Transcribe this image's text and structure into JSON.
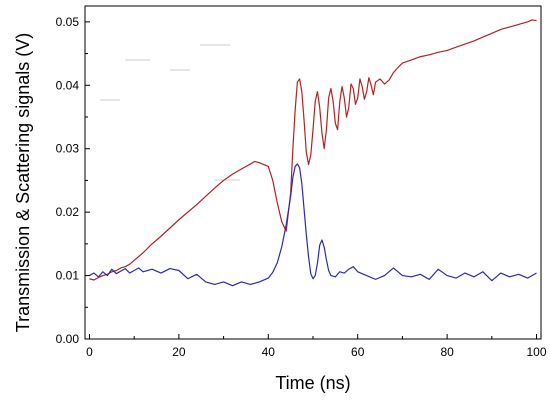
{
  "chart_data": {
    "type": "line",
    "title": "",
    "xlabel": "Time (ns)",
    "ylabel": "Transmission & Scattering signals (V)",
    "xlim": [
      -1,
      101
    ],
    "ylim": [
      0.0,
      0.0525
    ],
    "x_ticks": [
      0,
      20,
      40,
      60,
      80,
      100
    ],
    "y_ticks": [
      0.0,
      0.01,
      0.02,
      0.03,
      0.04,
      0.05
    ],
    "x_tick_labels": [
      "0",
      "20",
      "40",
      "60",
      "80",
      "100"
    ],
    "y_tick_labels": [
      "0.00",
      "0.01",
      "0.02",
      "0.03",
      "0.04",
      "0.05"
    ],
    "grid": false,
    "legend": "none",
    "series": [
      {
        "color": "#b22222",
        "x": [
          0,
          1,
          2,
          3,
          4,
          5,
          6,
          7,
          8,
          9,
          10,
          12,
          14,
          16,
          18,
          20,
          22,
          24,
          26,
          28,
          30,
          32,
          34,
          35,
          36,
          37,
          38,
          39,
          40,
          41,
          42,
          43,
          44,
          45,
          45.5,
          46,
          46.5,
          47,
          47.5,
          48,
          48.5,
          49,
          49.5,
          50,
          50.5,
          51,
          51.5,
          52,
          52.5,
          53,
          53.5,
          54,
          54.5,
          55,
          55.5,
          56,
          56.5,
          57,
          57.5,
          58,
          58.5,
          59,
          59.5,
          60,
          60.5,
          61,
          61.5,
          62,
          62.5,
          63,
          63.5,
          64,
          65,
          66,
          67,
          68,
          69,
          70,
          72,
          74,
          76,
          78,
          80,
          82,
          84,
          86,
          88,
          90,
          92,
          94,
          96,
          98,
          99,
          100
        ],
        "y": [
          0.0095,
          0.0093,
          0.0097,
          0.01,
          0.0102,
          0.0106,
          0.0108,
          0.0112,
          0.0114,
          0.0118,
          0.0124,
          0.0136,
          0.015,
          0.0162,
          0.0175,
          0.0188,
          0.02,
          0.0212,
          0.0225,
          0.0238,
          0.025,
          0.026,
          0.0268,
          0.0272,
          0.0276,
          0.028,
          0.0278,
          0.0275,
          0.0272,
          0.025,
          0.0215,
          0.0185,
          0.017,
          0.023,
          0.03,
          0.036,
          0.0405,
          0.041,
          0.039,
          0.0345,
          0.0295,
          0.0275,
          0.029,
          0.033,
          0.0375,
          0.039,
          0.0365,
          0.0325,
          0.03,
          0.033,
          0.038,
          0.0395,
          0.0375,
          0.034,
          0.033,
          0.0375,
          0.0398,
          0.038,
          0.035,
          0.0365,
          0.0402,
          0.0395,
          0.037,
          0.038,
          0.041,
          0.0398,
          0.0378,
          0.039,
          0.0412,
          0.04,
          0.0385,
          0.0405,
          0.041,
          0.0402,
          0.0408,
          0.042,
          0.0428,
          0.0435,
          0.044,
          0.0445,
          0.0448,
          0.0452,
          0.0455,
          0.046,
          0.0465,
          0.047,
          0.0476,
          0.0482,
          0.0488,
          0.0492,
          0.0496,
          0.05,
          0.0503,
          0.0502
        ]
      },
      {
        "color": "#2a2ab8",
        "x": [
          0,
          1,
          2,
          3,
          4,
          5,
          6,
          7,
          8,
          9,
          10,
          11,
          12,
          14,
          16,
          18,
          20,
          22,
          24,
          26,
          28,
          30,
          32,
          34,
          36,
          38,
          40,
          41,
          42,
          43,
          44,
          45,
          45.5,
          46,
          46.5,
          47,
          47.5,
          48,
          48.5,
          49,
          49.5,
          50,
          50.5,
          51,
          51.5,
          52,
          52.5,
          53,
          53.5,
          54,
          55,
          56,
          57,
          58,
          59,
          60,
          62,
          64,
          66,
          68,
          70,
          72,
          74,
          76,
          78,
          80,
          82,
          84,
          86,
          88,
          90,
          92,
          94,
          96,
          98,
          100
        ],
        "y": [
          0.01,
          0.0104,
          0.0098,
          0.0106,
          0.01,
          0.011,
          0.0103,
          0.0107,
          0.0111,
          0.0104,
          0.0108,
          0.0112,
          0.0106,
          0.011,
          0.0104,
          0.0111,
          0.0108,
          0.0095,
          0.0102,
          0.009,
          0.0086,
          0.009,
          0.0084,
          0.009,
          0.0086,
          0.009,
          0.0096,
          0.0105,
          0.012,
          0.0145,
          0.018,
          0.0225,
          0.0255,
          0.0272,
          0.0276,
          0.027,
          0.0245,
          0.0205,
          0.0165,
          0.013,
          0.0103,
          0.0095,
          0.01,
          0.012,
          0.0148,
          0.0156,
          0.0145,
          0.0125,
          0.0108,
          0.01,
          0.0098,
          0.0106,
          0.0104,
          0.011,
          0.0114,
          0.0106,
          0.01,
          0.0094,
          0.01,
          0.0112,
          0.01,
          0.0098,
          0.0102,
          0.0094,
          0.011,
          0.01,
          0.0096,
          0.0104,
          0.0098,
          0.0106,
          0.0092,
          0.0104,
          0.0098,
          0.0102,
          0.0096,
          0.0104
        ]
      }
    ]
  }
}
